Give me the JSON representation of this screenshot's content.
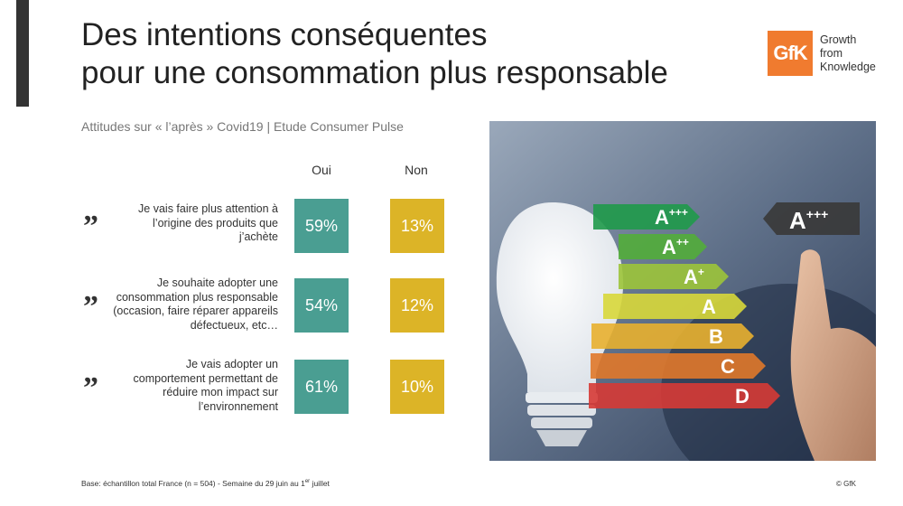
{
  "title": {
    "line1": "Des intentions conséquentes",
    "line2": "pour une consommation plus responsable"
  },
  "logo": {
    "mark": "GfK",
    "line1": "Growth",
    "line2": "from",
    "line3": "Knowledge",
    "color": "#f07b2f"
  },
  "subtitle": "Attitudes sur « l’après » Covid19 | Etude Consumer Pulse",
  "columns": {
    "oui": "Oui",
    "non": "Non"
  },
  "colors": {
    "oui": "#4a9e92",
    "non": "#dcb427"
  },
  "rows": [
    {
      "lines": [
        "Je vais faire plus attention à",
        "l’origine des produits que",
        "j’achète"
      ],
      "oui": "59%",
      "non": "13%"
    },
    {
      "lines": [
        "Je souhaite adopter une",
        "consommation plus responsable",
        "(occasion, faire réparer appareils",
        "défectueux, etc…"
      ],
      "oui": "54%",
      "non": "12%"
    },
    {
      "lines": [
        "Je vais adopter un",
        "comportement permettant de",
        "réduire mon impact sur",
        "l’environnement"
      ],
      "oui": "61%",
      "non": "10%"
    }
  ],
  "quote_glyph": "”",
  "energy_labels": [
    {
      "base": "A",
      "sup": "+++",
      "color": "#1f9a4a"
    },
    {
      "base": "A",
      "sup": "++",
      "color": "#52ad3a"
    },
    {
      "base": "A",
      "sup": "+",
      "color": "#9cc43a"
    },
    {
      "base": "A",
      "sup": "",
      "color": "#d8d83a"
    },
    {
      "base": "B",
      "sup": "",
      "color": "#e8b02f"
    },
    {
      "base": "C",
      "sup": "",
      "color": "#e0782a"
    },
    {
      "base": "D",
      "sup": "",
      "color": "#d63a35"
    }
  ],
  "selected_label": {
    "base": "A",
    "sup": "+++"
  },
  "footer": {
    "text": "Base: échantillon total France (n = 504) - Semaine du 29 juin au 1",
    "sup": "er",
    "tail": " juillet"
  },
  "copyright": "© GfK"
}
